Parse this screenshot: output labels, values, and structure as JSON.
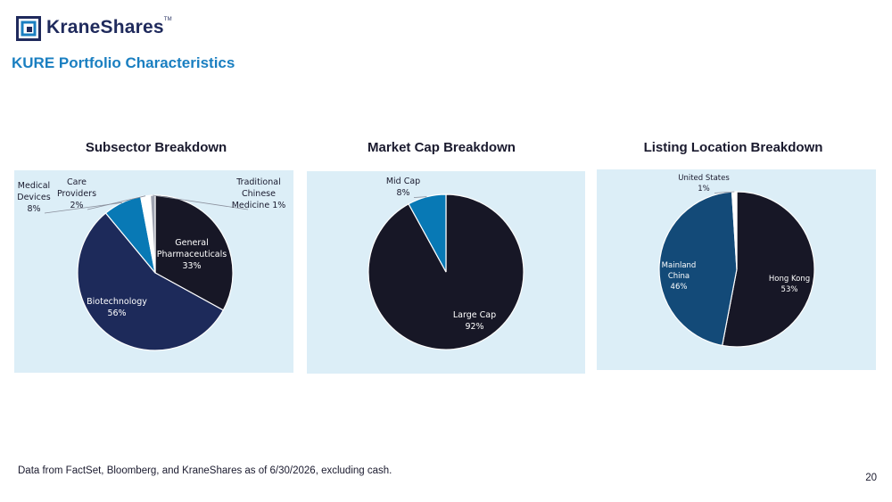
{
  "brand": {
    "name": "KraneShares",
    "tm": "TM"
  },
  "page_title": "KURE Portfolio Characteristics",
  "footnote": "Data from FactSet, Bloomberg, and KraneShares as of 6/30/2026, excluding cash.",
  "page_number": "20",
  "colors": {
    "accent": "#1a7fc1",
    "navy": "#1f2a5c",
    "panel": "#dceef7"
  },
  "chart_data": [
    {
      "type": "pie",
      "title": "Subsector Breakdown",
      "slices": [
        {
          "name": "General Pharmaceuticals",
          "lines": [
            "General",
            "Pharmaceuticals",
            "33%"
          ],
          "value": 33,
          "color": "#171726",
          "label_color": "#ffffff"
        },
        {
          "name": "Biotechnology",
          "lines": [
            "Biotechnology",
            "56%"
          ],
          "value": 56,
          "color": "#1d2a5a",
          "label_color": "#ffffff"
        },
        {
          "name": "Medical Devices",
          "lines": [
            "Medical",
            "Devices",
            "8%"
          ],
          "value": 8,
          "color": "#0879b5",
          "label_color": "#1a1a2e"
        },
        {
          "name": "Care Providers",
          "lines": [
            "Care",
            "Providers",
            "2%"
          ],
          "value": 2,
          "color": "#ffffff",
          "label_color": "#1a1a2e"
        },
        {
          "name": "Traditional Chinese Medicine",
          "lines": [
            "Traditional",
            "Chinese",
            "Medicine 1%"
          ],
          "value": 1,
          "color": "#9fa3b0",
          "label_color": "#1a1a2e"
        }
      ]
    },
    {
      "type": "pie",
      "title": "Market Cap Breakdown",
      "slices": [
        {
          "name": "Large Cap",
          "lines": [
            "Large Cap",
            "92%"
          ],
          "value": 92,
          "color": "#171726",
          "label_color": "#ffffff"
        },
        {
          "name": "Mid Cap",
          "lines": [
            "Mid Cap",
            "8%"
          ],
          "value": 8,
          "color": "#0879b5",
          "label_color": "#1a1a2e"
        }
      ]
    },
    {
      "type": "pie",
      "title": "Listing Location Breakdown",
      "slices": [
        {
          "name": "Hong Kong",
          "lines": [
            "Hong Kong",
            "53%"
          ],
          "value": 53,
          "color": "#171726",
          "label_color": "#ffffff"
        },
        {
          "name": "Mainland China",
          "lines": [
            "Mainland",
            "China",
            "46%"
          ],
          "value": 46,
          "color": "#134a78",
          "label_color": "#ffffff"
        },
        {
          "name": "United States",
          "lines": [
            "United States",
            "1%"
          ],
          "value": 1,
          "color": "#ffffff",
          "label_color": "#1a1a2e"
        }
      ]
    }
  ]
}
